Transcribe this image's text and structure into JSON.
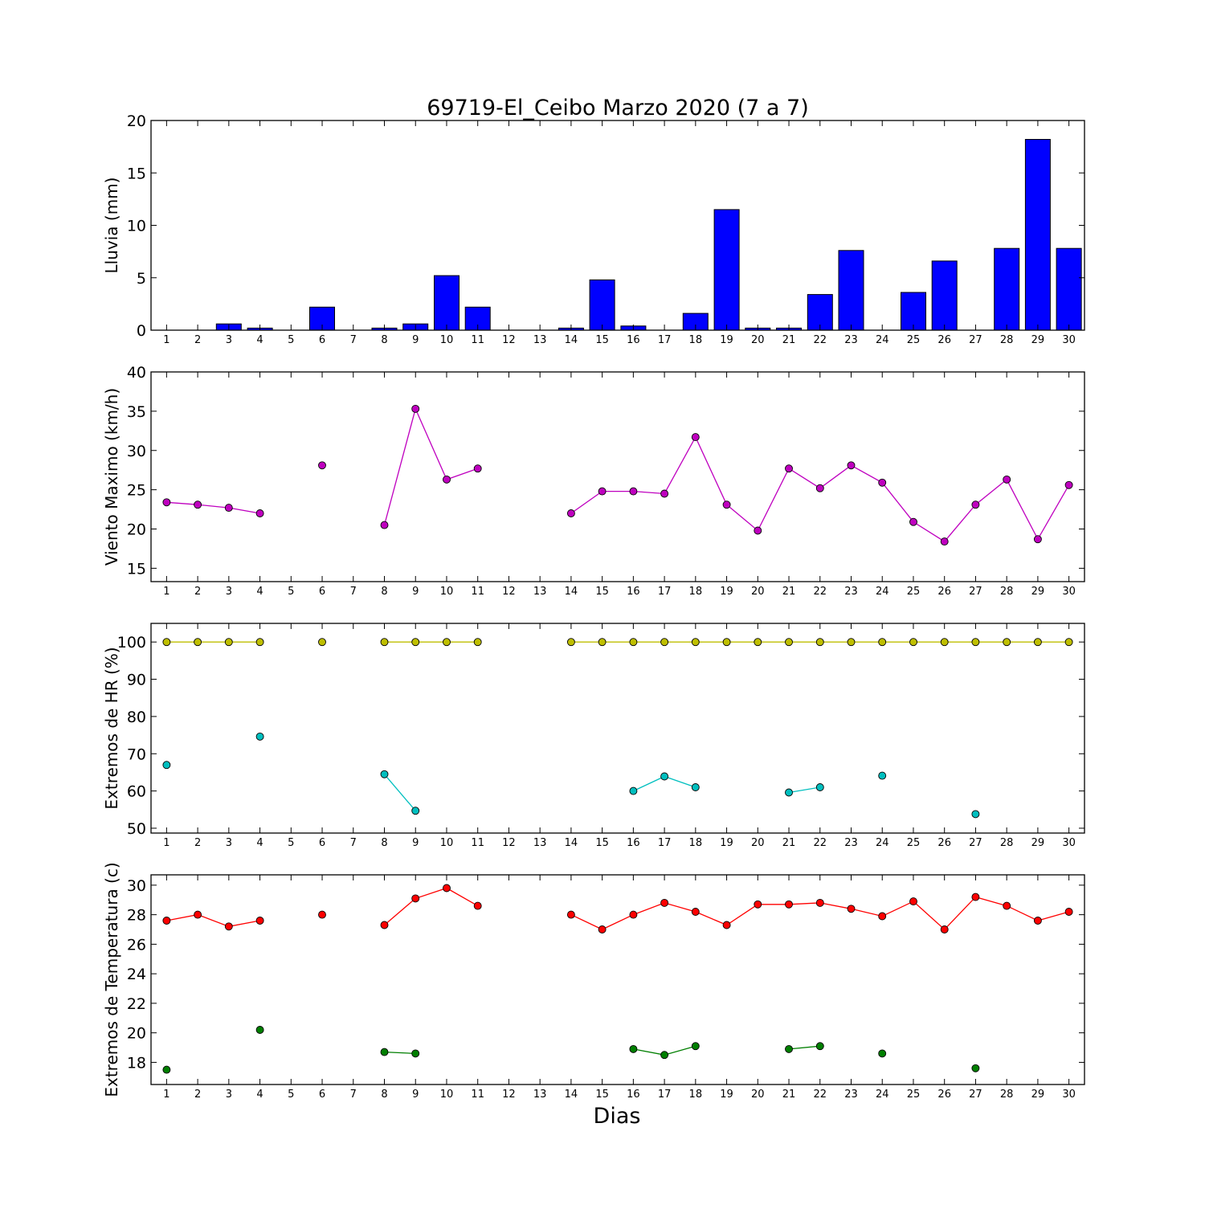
{
  "title": "69719-El_Ceibo Marzo 2020  (7 a 7)",
  "xlabel": "Dias",
  "x_ticks": [
    "1",
    "2",
    "3",
    "4",
    "5",
    "6",
    "7",
    "8",
    "9",
    "10",
    "11",
    "12",
    "13",
    "14",
    "15",
    "16",
    "17",
    "18",
    "19",
    "20",
    "21",
    "22",
    "23",
    "24",
    "25",
    "26",
    "27",
    "28",
    "29",
    "30"
  ],
  "chart_data": [
    {
      "type": "bar",
      "ylabel": "Lluvia (mm)",
      "ylim": [
        0,
        20
      ],
      "yticks": [
        0,
        5,
        10,
        15,
        20
      ],
      "categories": [
        1,
        2,
        3,
        4,
        5,
        6,
        7,
        8,
        9,
        10,
        11,
        12,
        13,
        14,
        15,
        16,
        17,
        18,
        19,
        20,
        21,
        22,
        23,
        24,
        25,
        26,
        27,
        28,
        29,
        30
      ],
      "values": [
        0,
        0,
        0.6,
        0.2,
        0,
        2.2,
        0,
        0.2,
        0.6,
        5.2,
        2.2,
        0,
        0,
        0.2,
        4.8,
        0.4,
        0,
        1.6,
        11.5,
        0.2,
        0.2,
        3.4,
        7.6,
        0,
        3.6,
        6.6,
        0,
        7.8,
        18.2,
        7.8
      ],
      "colors": {
        "fill": "#0000ff",
        "edge": "#000000"
      },
      "grid": false
    },
    {
      "type": "line",
      "ylabel": "Viento Maximo (km/h)",
      "ylim": [
        13.3,
        40
      ],
      "yticks": [
        15,
        20,
        25,
        30,
        35,
        40
      ],
      "x": [
        1,
        2,
        3,
        4,
        5,
        6,
        7,
        8,
        9,
        10,
        11,
        12,
        13,
        14,
        15,
        16,
        17,
        18,
        19,
        20,
        21,
        22,
        23,
        24,
        25,
        26,
        27,
        28,
        29,
        30
      ],
      "series": [
        {
          "values": [
            23.4,
            23.1,
            22.7,
            22,
            null,
            28.1,
            null,
            20.5,
            35.3,
            26.3,
            27.7,
            null,
            null,
            22,
            24.8,
            24.8,
            24.5,
            31.7,
            23.1,
            19.8,
            27.7,
            25.2,
            28.1,
            25.9,
            20.9,
            18.4,
            23.1,
            26.3,
            18.7,
            25.6
          ],
          "color": "#bf00bf"
        }
      ],
      "grid": false
    },
    {
      "type": "line",
      "ylabel": "Extremos de HR (%)",
      "ylim": [
        48.7,
        105
      ],
      "yticks": [
        50,
        60,
        70,
        80,
        90,
        100
      ],
      "x": [
        1,
        2,
        3,
        4,
        5,
        6,
        7,
        8,
        9,
        10,
        11,
        12,
        13,
        14,
        15,
        16,
        17,
        18,
        19,
        20,
        21,
        22,
        23,
        24,
        25,
        26,
        27,
        28,
        29,
        30
      ],
      "series": [
        {
          "values": [
            100,
            100,
            100,
            100,
            null,
            100,
            null,
            100,
            100,
            100,
            100,
            null,
            null,
            100,
            100,
            100,
            100,
            100,
            100,
            100,
            100,
            100,
            100,
            100,
            100,
            100,
            100,
            100,
            100,
            100
          ],
          "color": "#bfbf00"
        },
        {
          "values": [
            67,
            null,
            null,
            74.6,
            null,
            null,
            null,
            64.5,
            54.7,
            null,
            null,
            null,
            null,
            null,
            null,
            60,
            63.9,
            61,
            null,
            null,
            59.6,
            61,
            null,
            64.1,
            null,
            null,
            53.8,
            null,
            null,
            null
          ],
          "color": "#00bfbf"
        }
      ],
      "grid": false
    },
    {
      "type": "line",
      "ylabel": "Extremos de Temperatura (c)",
      "ylim": [
        16.5,
        30.7
      ],
      "yticks": [
        18,
        20,
        22,
        24,
        26,
        28,
        30
      ],
      "x": [
        1,
        2,
        3,
        4,
        5,
        6,
        7,
        8,
        9,
        10,
        11,
        12,
        13,
        14,
        15,
        16,
        17,
        18,
        19,
        20,
        21,
        22,
        23,
        24,
        25,
        26,
        27,
        28,
        29,
        30
      ],
      "series": [
        {
          "values": [
            27.6,
            28,
            27.2,
            27.6,
            null,
            28,
            null,
            27.3,
            29.1,
            29.8,
            28.6,
            null,
            null,
            28,
            27,
            28,
            28.8,
            28.2,
            27.3,
            28.7,
            28.7,
            28.8,
            28.4,
            27.9,
            28.9,
            27,
            29.2,
            28.6,
            27.6,
            28.2
          ],
          "color": "#ff0000"
        },
        {
          "values": [
            17.5,
            null,
            null,
            20.2,
            null,
            null,
            null,
            18.7,
            18.6,
            null,
            null,
            null,
            null,
            null,
            null,
            18.9,
            18.5,
            19.1,
            null,
            null,
            18.9,
            19.1,
            null,
            18.6,
            null,
            null,
            17.6,
            null,
            null,
            null
          ],
          "color": "#007f00"
        }
      ],
      "grid": false
    }
  ]
}
